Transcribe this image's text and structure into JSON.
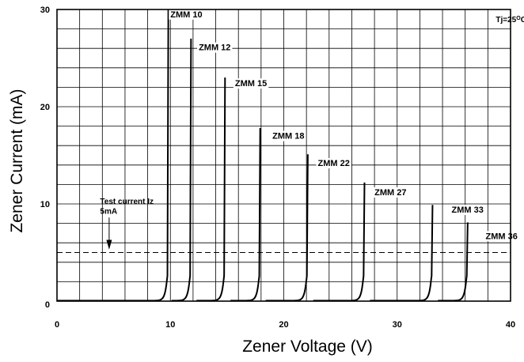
{
  "chart_data": {
    "type": "line",
    "xlabel": "Zener Voltage (V)",
    "ylabel": "Zener Current (mA)",
    "xlim": [
      0,
      40
    ],
    "ylim": [
      0,
      30
    ],
    "x_ticks": [
      "0",
      "10",
      "20",
      "30",
      "40"
    ],
    "y_ticks": [
      "0",
      "10",
      "20",
      "30"
    ],
    "x_grid_step": 2,
    "y_grid_step": 2,
    "grid": true,
    "condition_label": "Tj=25",
    "condition_sup": "O",
    "condition_unit": "C",
    "test_current": {
      "line1": "Test current Iz",
      "line2": "5mA",
      "value": 5,
      "arrow_x": 4.6
    },
    "series": [
      {
        "name": "ZMM 10",
        "vz": 9.7,
        "imax": 30,
        "label_x": 10.0,
        "label_y": 29.2
      },
      {
        "name": "ZMM 12",
        "vz": 11.7,
        "imax": 27,
        "label_x": 12.5,
        "label_y": 25.8
      },
      {
        "name": "ZMM 15",
        "vz": 14.7,
        "imax": 23,
        "label_x": 15.7,
        "label_y": 22.1
      },
      {
        "name": "ZMM 18",
        "vz": 17.8,
        "imax": 17.8,
        "label_x": 19.0,
        "label_y": 16.7
      },
      {
        "name": "ZMM 22",
        "vz": 22.0,
        "imax": 15.1,
        "label_x": 23.0,
        "label_y": 13.9
      },
      {
        "name": "ZMM 27",
        "vz": 27.0,
        "imax": 12.2,
        "label_x": 28.0,
        "label_y": 10.9
      },
      {
        "name": "ZMM 33",
        "vz": 33.0,
        "imax": 9.9,
        "label_x": 34.8,
        "label_y": 9.1
      },
      {
        "name": "ZMM 36",
        "vz": 36.1,
        "imax": 8.1,
        "label_x": 37.8,
        "label_y": 6.4
      }
    ]
  }
}
